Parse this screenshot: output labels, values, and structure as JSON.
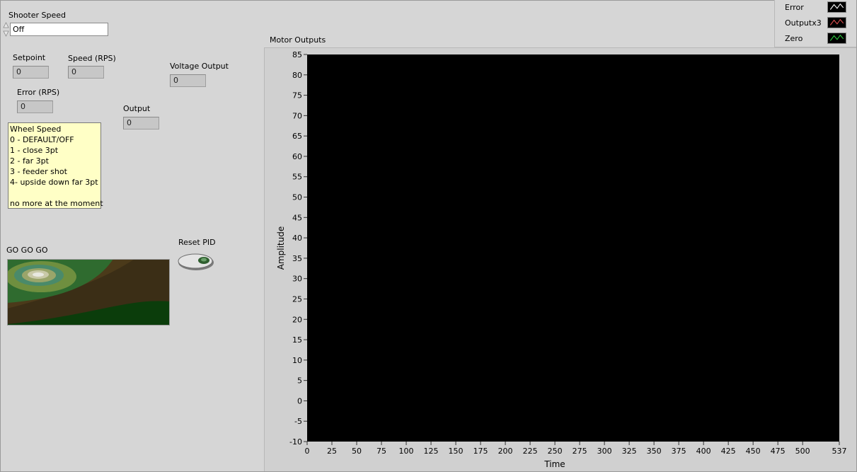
{
  "shooter": {
    "label": "Shooter Speed",
    "value": "Off"
  },
  "indicators": {
    "setpoint": {
      "label": "Setpoint",
      "value": "0"
    },
    "speed": {
      "label": "Speed (RPS)",
      "value": "0"
    },
    "voltage": {
      "label": "Voltage Output",
      "value": "0"
    },
    "error": {
      "label": "Error (RPS)",
      "value": "0"
    },
    "output": {
      "label": "Output",
      "value": "0"
    }
  },
  "wheel_note": {
    "lines": [
      "Wheel Speed",
      "0 - DEFAULT/OFF",
      "1 - close 3pt",
      "2 - far 3pt",
      "3 - feeder shot",
      "4- upside down far 3pt",
      "",
      "no more at the moment"
    ]
  },
  "go_image": {
    "label": "GO GO GO"
  },
  "reset": {
    "label": "Reset PID"
  },
  "legend": {
    "items": [
      {
        "name": "Error",
        "color": "#ffffff"
      },
      {
        "name": "Outputx3",
        "color": "#e05050"
      },
      {
        "name": "Zero",
        "color": "#2ecc40"
      }
    ]
  },
  "colors": {
    "background": "#d6d6d6",
    "plot_background": "#000000",
    "indicator": "#c7c7c7",
    "note": "#ffffc6"
  },
  "chart_data": {
    "type": "line",
    "title": "Motor Outputs",
    "xlabel": "Time",
    "ylabel": "Amplitude",
    "xlim": [
      0,
      537
    ],
    "ylim": [
      -10,
      85
    ],
    "x_ticks": [
      0,
      25,
      50,
      75,
      100,
      125,
      150,
      175,
      200,
      225,
      250,
      275,
      300,
      325,
      350,
      375,
      400,
      425,
      450,
      475,
      500,
      537
    ],
    "y_ticks": [
      85,
      80,
      75,
      70,
      65,
      60,
      55,
      50,
      45,
      40,
      35,
      30,
      25,
      20,
      15,
      10,
      5,
      0,
      -5,
      -10
    ],
    "grid": false,
    "legend_position": "top-right",
    "series": [
      {
        "name": "Error",
        "values": []
      },
      {
        "name": "Outputx3",
        "values": []
      },
      {
        "name": "Zero",
        "values": []
      }
    ]
  }
}
